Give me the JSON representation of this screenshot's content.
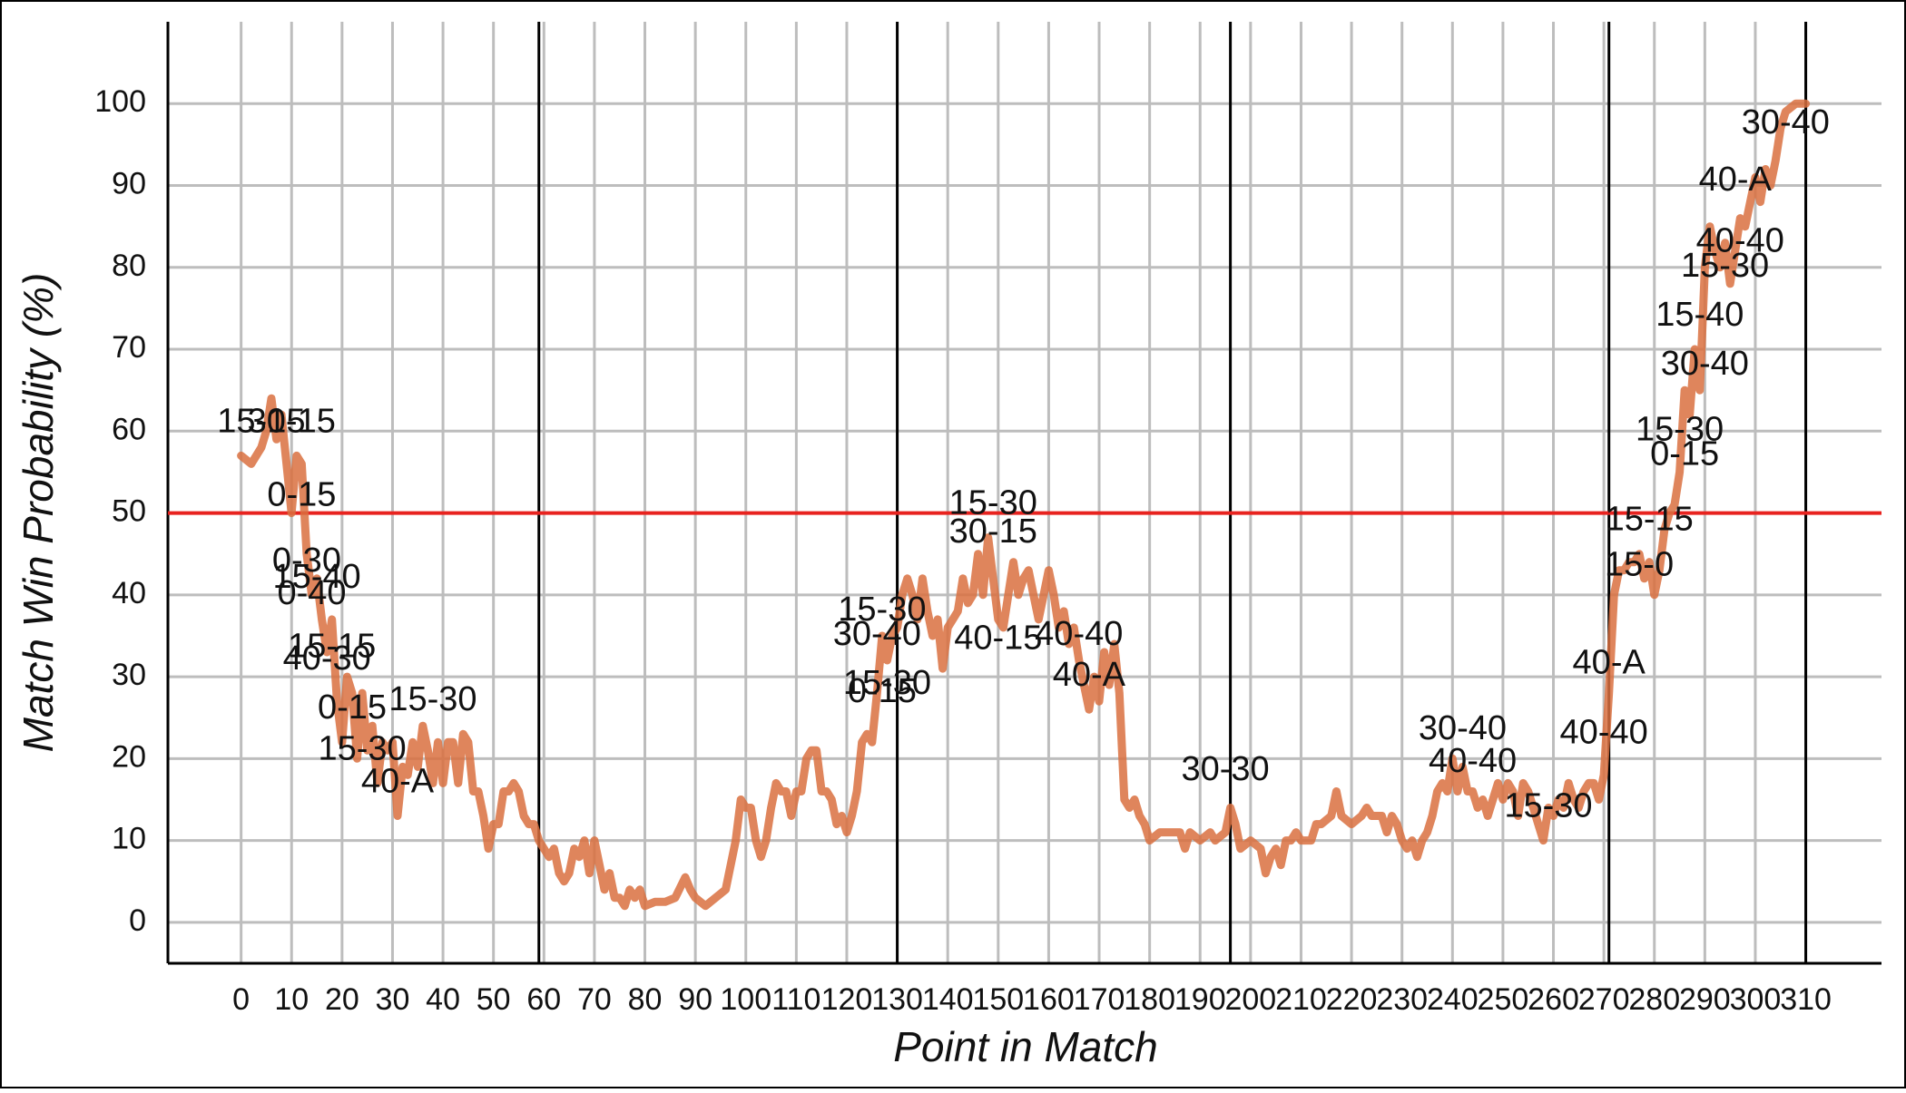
{
  "chart_data": {
    "type": "line",
    "xlabel": "Point in Match",
    "ylabel": "Match Win Probability (%)",
    "color": "#d9703f",
    "grid": true,
    "xlim": [
      -14.5,
      325
    ],
    "ylim": [
      -5,
      110
    ],
    "xticks": [
      0,
      10,
      20,
      30,
      40,
      50,
      60,
      70,
      80,
      90,
      100,
      110,
      120,
      130,
      140,
      150,
      160,
      170,
      180,
      190,
      200,
      210,
      220,
      230,
      240,
      250,
      260,
      270,
      280,
      290,
      300,
      310
    ],
    "yticks": [
      0,
      10,
      20,
      30,
      40,
      50,
      60,
      70,
      80,
      90,
      100
    ],
    "hline": {
      "value": 50,
      "color": "#e8231f"
    },
    "vlines": [
      59,
      130,
      196,
      271,
      310
    ],
    "x": [
      0,
      2,
      4,
      5,
      6,
      7,
      8,
      9,
      10,
      11,
      12,
      13,
      14,
      15,
      16,
      17,
      18,
      19,
      20,
      21,
      22,
      23,
      24,
      25,
      26,
      27,
      28,
      29,
      30,
      31,
      32,
      33,
      34,
      35,
      36,
      37,
      38,
      39,
      40,
      41,
      42,
      43,
      44,
      45,
      46,
      47,
      48,
      49,
      50,
      51,
      52,
      53,
      54,
      55,
      56,
      57,
      58,
      59,
      60,
      61,
      62,
      63,
      64,
      65,
      66,
      67,
      68,
      69,
      70,
      71,
      72,
      73,
      74,
      75,
      76,
      77,
      78,
      79,
      80,
      82,
      84,
      86,
      88,
      89,
      90,
      92,
      94,
      96,
      98,
      99,
      100,
      101,
      102,
      103,
      104,
      105,
      106,
      107,
      108,
      109,
      110,
      111,
      112,
      113,
      114,
      115,
      116,
      117,
      118,
      119,
      120,
      121,
      122,
      123,
      124,
      125,
      126,
      127,
      128,
      129,
      130,
      131,
      132,
      133,
      134,
      135,
      136,
      137,
      138,
      139,
      140,
      141,
      142,
      143,
      144,
      145,
      146,
      147,
      148,
      149,
      150,
      151,
      152,
      153,
      154,
      155,
      156,
      157,
      158,
      159,
      160,
      161,
      162,
      163,
      164,
      165,
      166,
      167,
      168,
      169,
      170,
      171,
      172,
      173,
      174,
      175,
      176,
      177,
      178,
      179,
      180,
      182,
      184,
      186,
      187,
      188,
      190,
      192,
      193,
      195,
      196,
      197,
      198,
      200,
      202,
      203,
      204,
      205,
      206,
      207,
      208,
      209,
      210,
      212,
      213,
      214,
      216,
      217,
      218,
      220,
      222,
      223,
      224,
      226,
      227,
      228,
      229,
      230,
      231,
      232,
      233,
      234,
      235,
      236,
      237,
      238,
      239,
      240,
      241,
      242,
      243,
      244,
      245,
      246,
      247,
      248,
      249,
      250,
      251,
      252,
      253,
      254,
      255,
      256,
      257,
      258,
      259,
      260,
      261,
      262,
      263,
      264,
      265,
      266,
      267,
      268,
      269,
      270,
      271,
      272,
      273,
      274,
      275,
      276,
      277,
      278,
      279,
      280,
      281,
      282,
      283,
      284,
      285,
      286,
      287,
      288,
      289,
      290,
      291,
      292,
      293,
      294,
      295,
      296,
      297,
      298,
      299,
      300,
      301,
      302,
      303,
      304,
      305,
      306,
      308,
      310
    ],
    "values": [
      57,
      56,
      58,
      60,
      64,
      59,
      62,
      56,
      50,
      57,
      56,
      45,
      40,
      42,
      37,
      33,
      37,
      27,
      22,
      30,
      28,
      20,
      28,
      21,
      24,
      17,
      22,
      21,
      22,
      13,
      19,
      18,
      22,
      19,
      24,
      21,
      17,
      22,
      17,
      22,
      22,
      17,
      23,
      22,
      16,
      16,
      13,
      9,
      12,
      12,
      16,
      16,
      17,
      16,
      13,
      12,
      12,
      10,
      9,
      8,
      9,
      6,
      5,
      6,
      9,
      8,
      10,
      6,
      10,
      7,
      4,
      6,
      3,
      3,
      2,
      4,
      3,
      4,
      2,
      2.5,
      2.5,
      3,
      5.5,
      4,
      3,
      2,
      3,
      4,
      10,
      15,
      14,
      14,
      10,
      8,
      10,
      14,
      17,
      16,
      16,
      13,
      16,
      16,
      20,
      21,
      21,
      16,
      16,
      15,
      12,
      13,
      11,
      13,
      16,
      22,
      23,
      22,
      28,
      35,
      32,
      35,
      36,
      40,
      42,
      40,
      37,
      42,
      38,
      35,
      37,
      31,
      36,
      37,
      38,
      42,
      39,
      40,
      45,
      40,
      47,
      42,
      37,
      36,
      40,
      44,
      40,
      42,
      43,
      40,
      37,
      40,
      43,
      40,
      36,
      38,
      34,
      36,
      32,
      29,
      26,
      30,
      27,
      33,
      29,
      34,
      28,
      15,
      14,
      15,
      13,
      12,
      10,
      11,
      11,
      11,
      9,
      11,
      10,
      11,
      10,
      11,
      14,
      12,
      9,
      10,
      9,
      6,
      8,
      9,
      7,
      10,
      10,
      11,
      10,
      10,
      12,
      12,
      13,
      16,
      13,
      12,
      13,
      14,
      13,
      13,
      11,
      13,
      12,
      10,
      9,
      10,
      8,
      10,
      11,
      13,
      16,
      17,
      16,
      20,
      16,
      19,
      16,
      16,
      14,
      15,
      13,
      15,
      17,
      15,
      17,
      16,
      13,
      17,
      16,
      14,
      12,
      10,
      14,
      13,
      15,
      14,
      17,
      15,
      14,
      16,
      17,
      17,
      15,
      18,
      28,
      40,
      43,
      43,
      44,
      44,
      45,
      42,
      44,
      40,
      43,
      48,
      50,
      51,
      55,
      65,
      62,
      70,
      65,
      80,
      85,
      82,
      80,
      83,
      78,
      82,
      86,
      85,
      88,
      91,
      88,
      92,
      90,
      93,
      97,
      99,
      100,
      100
    ],
    "annotations": [
      {
        "text": "15-15",
        "x": 4,
        "y": 61
      },
      {
        "text": "30-15",
        "x": 10,
        "y": 61
      },
      {
        "text": "0-15",
        "x": 12,
        "y": 52
      },
      {
        "text": "0-30",
        "x": 13,
        "y": 44
      },
      {
        "text": "15-40",
        "x": 15,
        "y": 42
      },
      {
        "text": "0-40",
        "x": 14,
        "y": 40
      },
      {
        "text": "15-15",
        "x": 18,
        "y": 33.5
      },
      {
        "text": "40-30",
        "x": 17,
        "y": 32
      },
      {
        "text": "0-15",
        "x": 22,
        "y": 26
      },
      {
        "text": "15-30",
        "x": 24,
        "y": 21
      },
      {
        "text": "40-A",
        "x": 31,
        "y": 17
      },
      {
        "text": "15-30",
        "x": 38,
        "y": 27
      },
      {
        "text": "0-15",
        "x": 127,
        "y": 28
      },
      {
        "text": "15-30",
        "x": 128,
        "y": 29
      },
      {
        "text": "30-40",
        "x": 126,
        "y": 35
      },
      {
        "text": "15-30",
        "x": 127,
        "y": 38
      },
      {
        "text": "15-30",
        "x": 149,
        "y": 51
      },
      {
        "text": "30-15",
        "x": 149,
        "y": 47.5
      },
      {
        "text": "40-15",
        "x": 150,
        "y": 34.5
      },
      {
        "text": "40-40",
        "x": 166,
        "y": 35
      },
      {
        "text": "40-A",
        "x": 168,
        "y": 30
      },
      {
        "text": "30-30",
        "x": 195,
        "y": 18.5
      },
      {
        "text": "30-40",
        "x": 242,
        "y": 23.5
      },
      {
        "text": "40-40",
        "x": 244,
        "y": 19.5
      },
      {
        "text": "15-30",
        "x": 259,
        "y": 14
      },
      {
        "text": "40-40",
        "x": 270,
        "y": 23
      },
      {
        "text": "40-A",
        "x": 271,
        "y": 31.5
      },
      {
        "text": "15-0",
        "x": 277,
        "y": 43.5
      },
      {
        "text": "15-15",
        "x": 279,
        "y": 49
      },
      {
        "text": "0-15",
        "x": 286,
        "y": 57
      },
      {
        "text": "15-30",
        "x": 285,
        "y": 60
      },
      {
        "text": "30-40",
        "x": 290,
        "y": 68
      },
      {
        "text": "15-40",
        "x": 289,
        "y": 74
      },
      {
        "text": "15-30",
        "x": 294,
        "y": 80
      },
      {
        "text": "40-40",
        "x": 297,
        "y": 83
      },
      {
        "text": "40-A",
        "x": 296,
        "y": 90.5
      },
      {
        "text": "30-40",
        "x": 306,
        "y": 97.5
      }
    ]
  }
}
